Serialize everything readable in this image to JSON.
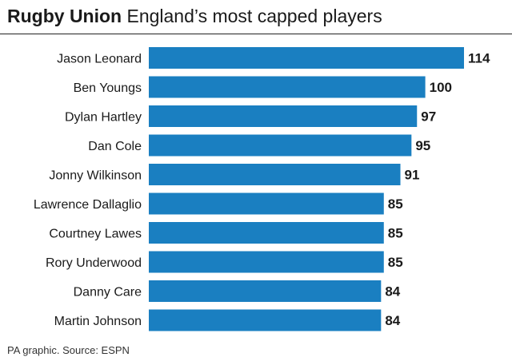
{
  "header": {
    "title_bold": "Rugby Union",
    "title_rest": "England’s most capped players"
  },
  "chart_data": {
    "type": "bar",
    "orientation": "horizontal",
    "title": "Rugby Union England’s most capped players",
    "categories": [
      "Jason Leonard",
      "Ben Youngs",
      "Dylan Hartley",
      "Dan Cole",
      "Jonny Wilkinson",
      "Lawrence Dallaglio",
      "Courtney Lawes",
      "Rory Underwood",
      "Danny Care",
      "Martin Johnson"
    ],
    "values": [
      114,
      100,
      97,
      95,
      91,
      85,
      85,
      85,
      84,
      84
    ],
    "xlabel": "",
    "ylabel": "",
    "xlim": [
      0,
      114
    ],
    "grid": false,
    "legend": "none",
    "bar_color": "#1a7fc1",
    "data_labels": true
  },
  "footer": {
    "source": "PA graphic. Source: ESPN"
  }
}
